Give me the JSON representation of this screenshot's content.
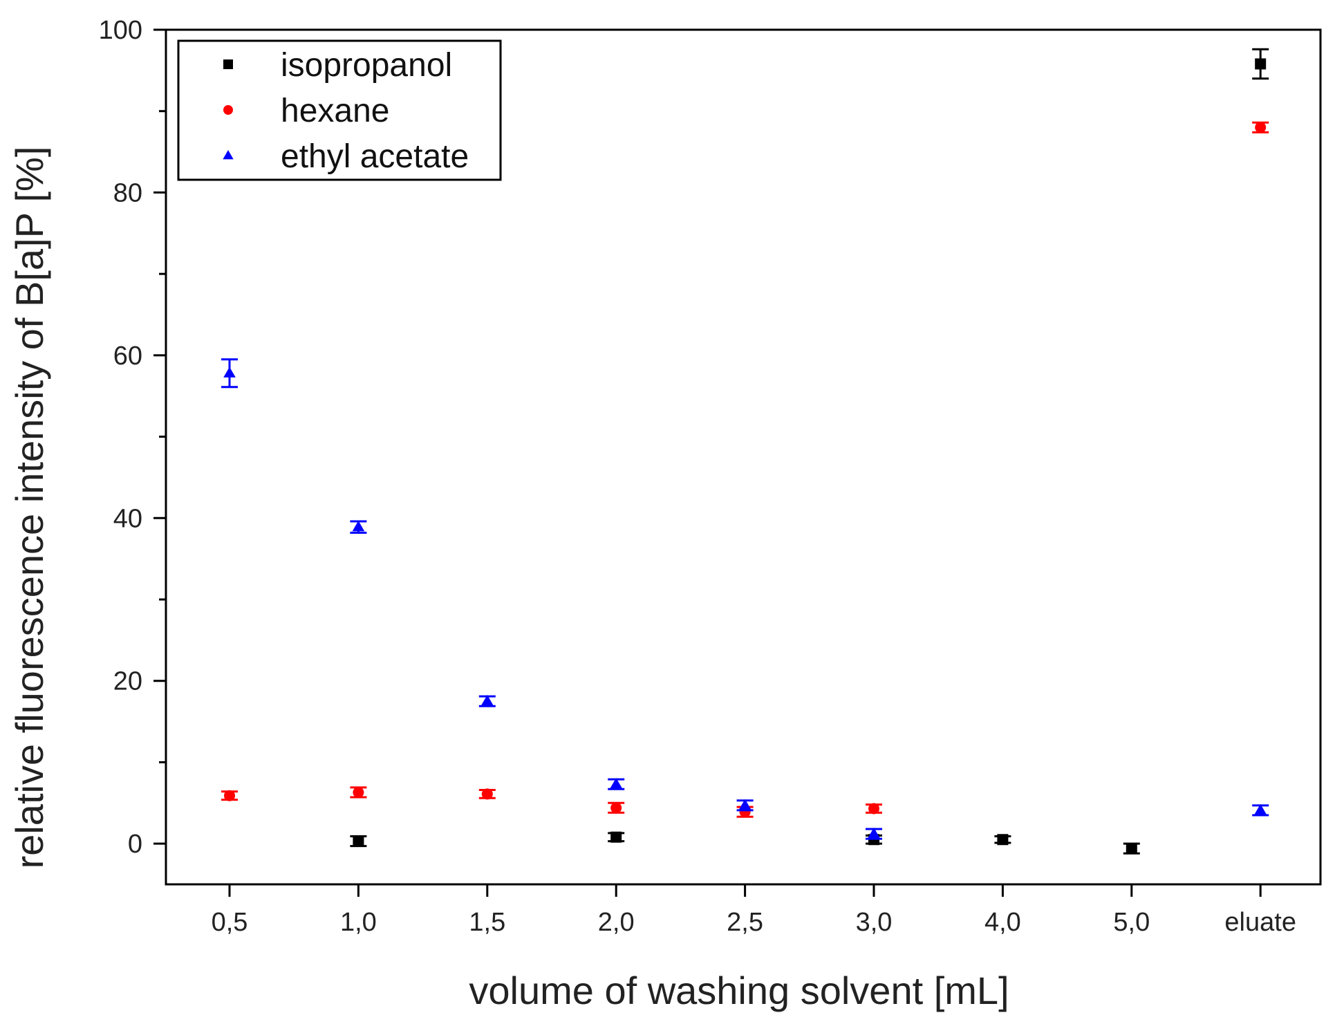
{
  "chart_data": {
    "type": "scatter",
    "xlabel": "volume of washing solvent [mL]",
    "ylabel": "relative fluorescence intensity of B[a]P [%]",
    "categories": [
      "0,5",
      "1,0",
      "1,5",
      "2,0",
      "2,5",
      "3,0",
      "4,0",
      "5,0",
      "eluate"
    ],
    "ylim": [
      -5,
      100
    ],
    "yticks": [
      0,
      20,
      40,
      60,
      80,
      100
    ],
    "yminor_step": 10,
    "grid": false,
    "legend_position": "top-left",
    "series": [
      {
        "name": "isopropanol",
        "color": "#000000",
        "marker": "square",
        "points": [
          {
            "category": "1,0",
            "y": 0.3,
            "err": 0.6
          },
          {
            "category": "2,0",
            "y": 0.8,
            "err": 0.5
          },
          {
            "category": "3,0",
            "y": 0.5,
            "err": 0.5
          },
          {
            "category": "4,0",
            "y": 0.5,
            "err": 0.4
          },
          {
            "category": "5,0",
            "y": -0.6,
            "err": 0.6
          },
          {
            "category": "eluate",
            "y": 95.8,
            "err": 1.8
          }
        ]
      },
      {
        "name": "hexane",
        "color": "#ff0000",
        "marker": "circle",
        "points": [
          {
            "category": "0,5",
            "y": 5.9,
            "err": 0.5
          },
          {
            "category": "1,0",
            "y": 6.3,
            "err": 0.6
          },
          {
            "category": "1,5",
            "y": 6.1,
            "err": 0.5
          },
          {
            "category": "2,0",
            "y": 4.4,
            "err": 0.6
          },
          {
            "category": "2,5",
            "y": 3.9,
            "err": 0.6
          },
          {
            "category": "3,0",
            "y": 4.3,
            "err": 0.5
          },
          {
            "category": "eluate",
            "y": 88.0,
            "err": 0.6
          }
        ]
      },
      {
        "name": "ethyl acetate",
        "color": "#0000ff",
        "marker": "triangle",
        "points": [
          {
            "category": "0,5",
            "y": 57.8,
            "err": 1.7
          },
          {
            "category": "1,0",
            "y": 38.9,
            "err": 0.7
          },
          {
            "category": "1,5",
            "y": 17.5,
            "err": 0.6
          },
          {
            "category": "2,0",
            "y": 7.3,
            "err": 0.6
          },
          {
            "category": "2,5",
            "y": 4.7,
            "err": 0.6
          },
          {
            "category": "3,0",
            "y": 1.2,
            "err": 0.6
          },
          {
            "category": "eluate",
            "y": 4.1,
            "err": 0.6
          }
        ]
      }
    ]
  }
}
